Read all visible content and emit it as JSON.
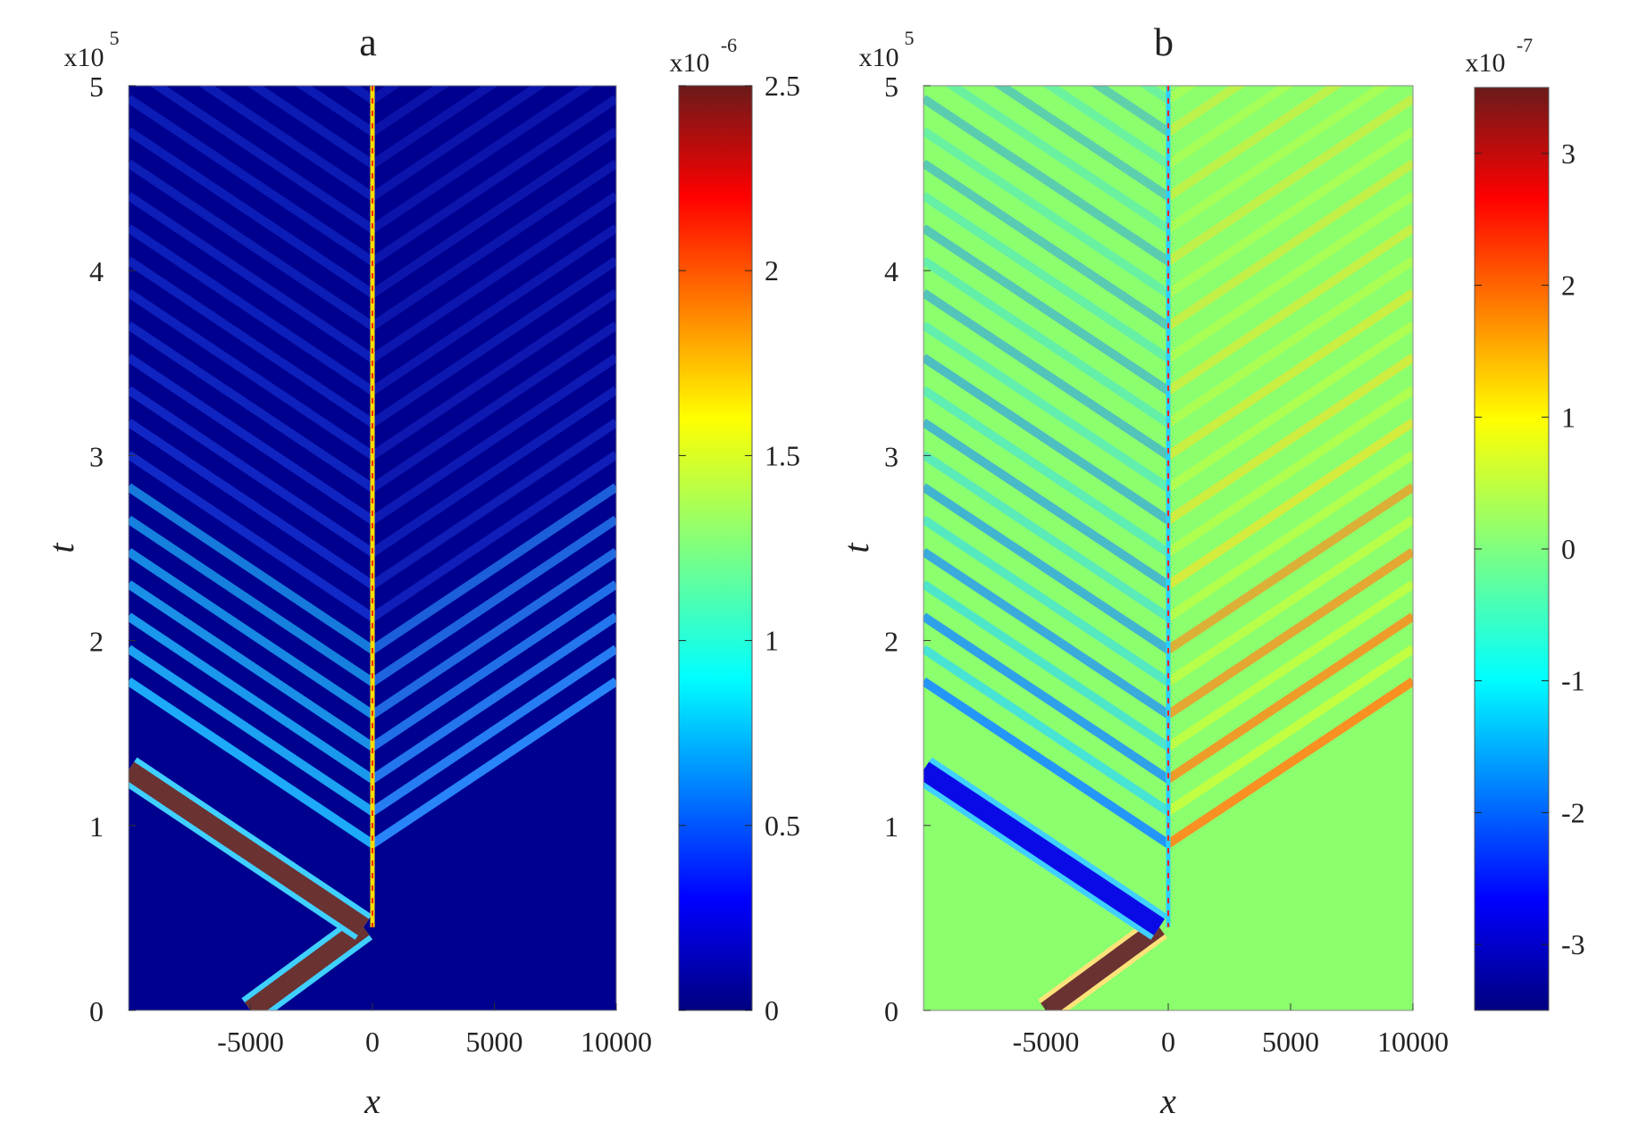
{
  "chart_data": [
    {
      "type": "heatmap",
      "title": "a",
      "xlabel": "x",
      "ylabel": "t",
      "y_exponent_label": "x10",
      "y_exponent_power": "5",
      "xlim": [
        -10000,
        10000
      ],
      "ylim": [
        0,
        5
      ],
      "x_ticks": [
        {
          "value": -5000,
          "label": "-5000"
        },
        {
          "value": 0,
          "label": "0"
        },
        {
          "value": 5000,
          "label": "5000"
        },
        {
          "value": 10000,
          "label": "10000"
        }
      ],
      "y_ticks": [
        {
          "value": 0,
          "label": "0"
        },
        {
          "value": 1,
          "label": "1"
        },
        {
          "value": 2,
          "label": "2"
        },
        {
          "value": 3,
          "label": "3"
        },
        {
          "value": 4,
          "label": "4"
        },
        {
          "value": 5,
          "label": "5"
        }
      ],
      "colorbar": {
        "colormap": "jet",
        "exponent_label": "x10",
        "exponent_power": "-6",
        "range": [
          0,
          2.5
        ],
        "ticks": [
          {
            "value": 0,
            "label": "0"
          },
          {
            "value": 0.5,
            "label": "0.5"
          },
          {
            "value": 1,
            "label": "1"
          },
          {
            "value": 1.5,
            "label": "1.5"
          },
          {
            "value": 2,
            "label": "2"
          },
          {
            "value": 2.5,
            "label": "2.5"
          }
        ]
      },
      "colors": {
        "background": "#00008f",
        "band_peak": "#6b3232",
        "band_edge": "#3fd0ff"
      }
    },
    {
      "type": "heatmap",
      "title": "b",
      "xlabel": "x",
      "ylabel": "t",
      "y_exponent_label": "x10",
      "y_exponent_power": "5",
      "xlim": [
        -10000,
        10000
      ],
      "ylim": [
        0,
        5
      ],
      "x_ticks": [
        {
          "value": -5000,
          "label": "-5000"
        },
        {
          "value": 0,
          "label": "0"
        },
        {
          "value": 5000,
          "label": "5000"
        },
        {
          "value": 10000,
          "label": "10000"
        }
      ],
      "y_ticks": [
        {
          "value": 0,
          "label": "0"
        },
        {
          "value": 1,
          "label": "1"
        },
        {
          "value": 2,
          "label": "2"
        },
        {
          "value": 3,
          "label": "3"
        },
        {
          "value": 4,
          "label": "4"
        },
        {
          "value": 5,
          "label": "5"
        }
      ],
      "colorbar": {
        "colormap": "jet",
        "exponent_label": "x10",
        "exponent_power": "-7",
        "range": [
          -3.5,
          3.5
        ],
        "ticks": [
          {
            "value": -3,
            "label": "-3"
          },
          {
            "value": -2,
            "label": "-2"
          },
          {
            "value": -1,
            "label": "-1"
          },
          {
            "value": 0,
            "label": "0"
          },
          {
            "value": 1,
            "label": "1"
          },
          {
            "value": 2,
            "label": "2"
          },
          {
            "value": 3,
            "label": "3"
          }
        ]
      },
      "colors": {
        "background": "#8cff6e",
        "band_peak": "#6b3232",
        "band_negative": "#0a0ae6",
        "band_edge": "#3fd0ff"
      }
    }
  ]
}
